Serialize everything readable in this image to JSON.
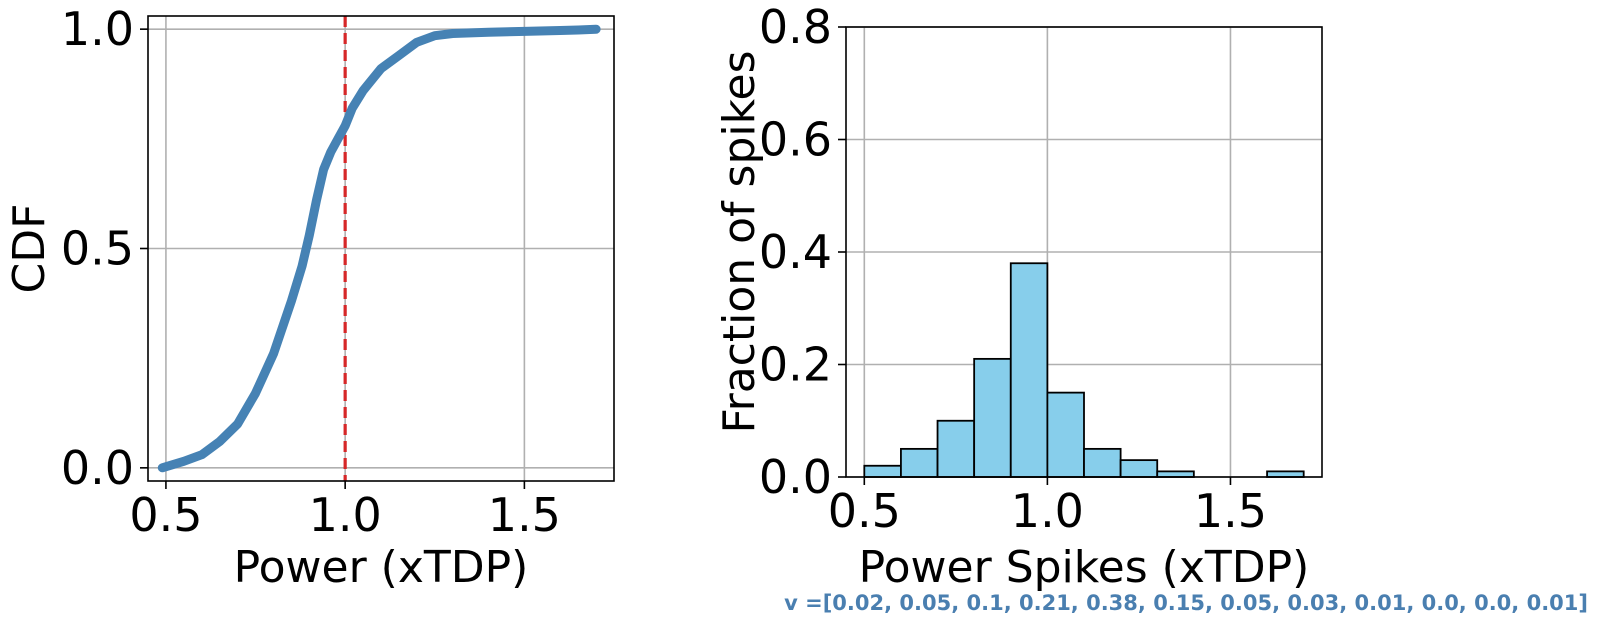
{
  "chart_data": [
    {
      "type": "line",
      "xlabel": "Power (xTDP)",
      "ylabel": "CDF",
      "xlim": [
        0.45,
        1.75
      ],
      "ylim": [
        -0.03,
        1.03
      ],
      "xticks": [
        "0.5",
        "1.0",
        "1.5"
      ],
      "yticks": [
        "0.0",
        "0.5",
        "1.0"
      ],
      "grid": true,
      "series": [
        {
          "name": "CDF",
          "color": "#4682b4",
          "x": [
            0.49,
            0.55,
            0.6,
            0.65,
            0.7,
            0.75,
            0.8,
            0.85,
            0.88,
            0.9,
            0.92,
            0.94,
            0.96,
            0.98,
            1.0,
            1.02,
            1.05,
            1.1,
            1.15,
            1.2,
            1.25,
            1.3,
            1.4,
            1.5,
            1.6,
            1.65,
            1.7
          ],
          "y": [
            0.0,
            0.015,
            0.03,
            0.06,
            0.1,
            0.17,
            0.26,
            0.38,
            0.46,
            0.53,
            0.61,
            0.68,
            0.72,
            0.75,
            0.78,
            0.82,
            0.86,
            0.91,
            0.94,
            0.97,
            0.985,
            0.99,
            0.993,
            0.995,
            0.997,
            0.998,
            1.0
          ]
        }
      ],
      "reference_line": {
        "x": 1.0,
        "color": "#d62728",
        "style": "dashed"
      }
    },
    {
      "type": "bar",
      "subtype": "histogram",
      "xlabel": "Power Spikes (xTDP)",
      "ylabel": "Fraction of spikes",
      "xlim": [
        0.45,
        1.75
      ],
      "ylim": [
        0.0,
        0.8
      ],
      "xticks": [
        "0.5",
        "1.0",
        "1.5"
      ],
      "yticks": [
        "0.0",
        "0.2",
        "0.4",
        "0.6",
        "0.8"
      ],
      "grid": true,
      "bin_edges": [
        0.5,
        0.6,
        0.7,
        0.8,
        0.9,
        1.0,
        1.1,
        1.2,
        1.3,
        1.4,
        1.5,
        1.6,
        1.7
      ],
      "values": [
        0.02,
        0.05,
        0.1,
        0.21,
        0.38,
        0.15,
        0.05,
        0.03,
        0.01,
        0.0,
        0.0,
        0.01
      ],
      "bar_color": "#87ceeb",
      "edge_color": "#000000"
    }
  ],
  "footnote": {
    "text": "v =[0.02, 0.05, 0.1, 0.21, 0.38, 0.15, 0.05, 0.03, 0.01, 0.0, 0.0, 0.01]",
    "color": "#4a7fb0"
  }
}
